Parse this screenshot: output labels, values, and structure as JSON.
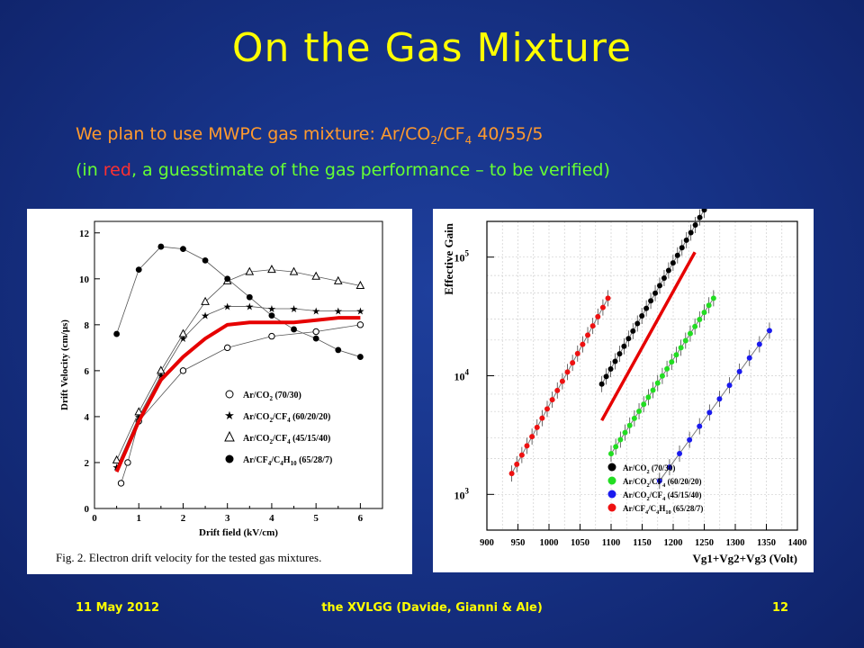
{
  "slide": {
    "title": "On the Gas Mixture",
    "line1_prefix": "We plan to use MWPC gas mixture: Ar/CO",
    "line1_sub1": "2",
    "line1_mid": "/CF",
    "line1_sub2": "4",
    "line1_suffix": " 40/55/5",
    "line2_open": "(in ",
    "line2_red": "red",
    "line2_rest": ", a guesstimate of the gas performance – to be verified)"
  },
  "footer": {
    "date": "11 May 2012",
    "center": "the XVLGG (Davide, Gianni & Ale)",
    "page": "12"
  },
  "chart_data": [
    {
      "type": "line",
      "xlabel": "Drift field (kV/cm)",
      "ylabel": "Drift Velocity (cm/μs)",
      "xlim": [
        0,
        6.5
      ],
      "ylim": [
        0,
        12.5
      ],
      "xticks": [
        0,
        1,
        2,
        3,
        4,
        5,
        6
      ],
      "yticks": [
        0,
        2,
        4,
        6,
        8,
        10,
        12
      ],
      "caption": "Fig. 2.  Electron drift velocity for the tested gas mixtures.",
      "legend_position": "bottom-right",
      "series": [
        {
          "name": "Ar/CO2 (70/30)",
          "legend_text": "Ar/CO",
          "legend_sub": "2",
          "legend_tail": " (70/30)",
          "marker": "open-circle",
          "x": [
            0.6,
            0.75,
            1.0,
            2.0,
            3.0,
            4.0,
            5.0,
            6.0
          ],
          "y": [
            1.1,
            2.0,
            3.8,
            6.0,
            7.0,
            7.5,
            7.7,
            8.0
          ]
        },
        {
          "name": "Ar/CO2/CF4 (60/20/20)",
          "legend_text": "Ar/CO",
          "legend_sub": "2",
          "legend_mid": "/CF",
          "legend_sub2": "4",
          "legend_tail": " (60/20/20)",
          "marker": "star",
          "x": [
            0.5,
            1.0,
            1.5,
            2.0,
            2.5,
            3.0,
            3.5,
            4.0,
            4.5,
            5.0,
            5.5,
            6.0
          ],
          "y": [
            1.8,
            4.0,
            5.8,
            7.4,
            8.4,
            8.8,
            8.8,
            8.7,
            8.7,
            8.6,
            8.6,
            8.6
          ]
        },
        {
          "name": "Ar/CO2/CF4 (45/15/40)",
          "legend_text": "Ar/CO",
          "legend_sub": "2",
          "legend_mid": "/CF",
          "legend_sub2": "4",
          "legend_tail": " (45/15/40)",
          "marker": "open-triangle",
          "x": [
            0.5,
            1.0,
            1.5,
            2.0,
            2.5,
            3.0,
            3.5,
            4.0,
            4.5,
            5.0,
            5.5,
            6.0
          ],
          "y": [
            2.1,
            4.2,
            6.0,
            7.6,
            9.0,
            9.9,
            10.3,
            10.4,
            10.3,
            10.1,
            9.9,
            9.7
          ]
        },
        {
          "name": "Ar/CF4/C4H10 (65/28/7)",
          "legend_text": "Ar/CF",
          "legend_sub": "4",
          "legend_mid": "/C",
          "legend_sub2": "4",
          "legend_mid2": "H",
          "legend_sub3": "10",
          "legend_tail": " (65/28/7)",
          "marker": "filled-circle",
          "x": [
            0.5,
            1.0,
            1.5,
            2.0,
            2.5,
            3.0,
            3.5,
            4.0,
            4.5,
            5.0,
            5.5,
            6.0
          ],
          "y": [
            7.6,
            10.4,
            11.4,
            11.3,
            10.8,
            10.0,
            9.2,
            8.4,
            7.8,
            7.4,
            6.9,
            6.6
          ]
        },
        {
          "name": "guesstimate",
          "marker": "none",
          "color": "#e60000",
          "x": [
            0.5,
            1.0,
            1.5,
            2.0,
            2.5,
            3.0,
            3.5,
            4.0,
            4.5,
            5.0,
            5.5,
            6.0
          ],
          "y": [
            1.6,
            3.8,
            5.6,
            6.6,
            7.4,
            8.0,
            8.1,
            8.1,
            8.1,
            8.2,
            8.3,
            8.3
          ]
        }
      ]
    },
    {
      "type": "scatter",
      "xlabel": "Vg1+Vg2+Vg3 (Volt)",
      "ylabel": "Effective Gain",
      "xlim": [
        900,
        1400
      ],
      "xticks": [
        900,
        950,
        1000,
        1050,
        1100,
        1150,
        1200,
        1250,
        1300,
        1350,
        1400
      ],
      "y_scale": "log",
      "ylim": [
        500,
        200000
      ],
      "yticks": [
        1000,
        10000,
        100000
      ],
      "ytick_base": "10",
      "ytick_exponents": [
        "3",
        "4",
        "5"
      ],
      "legend_position": "bottom-right",
      "series": [
        {
          "name": "Ar/CO2 (70/30)",
          "legend_text": "Ar/CO",
          "legend_sub": "2",
          "legend_tail": " (70/30)",
          "color": "#000000",
          "x_start": 1085,
          "x_end": 1250,
          "y_start": 8500,
          "y_end": 250000,
          "n": 24
        },
        {
          "name": "Ar/CO2/CF4 (60/20/20)",
          "legend_text": "Ar/CO",
          "legend_sub": "2",
          "legend_mid": "/CF",
          "legend_sub2": "4",
          "legend_tail": " (60/20/20)",
          "color": "#22dd22",
          "x_start": 1100,
          "x_end": 1265,
          "y_start": 2200,
          "y_end": 45000,
          "n": 23
        },
        {
          "name": "Ar/CO2/CF4 (45/15/40)",
          "legend_text": "Ar/CO",
          "legend_sub": "2",
          "legend_mid": "/CF",
          "legend_sub2": "4",
          "legend_tail": " (45/15/40)",
          "color": "#1a1aee",
          "x_start": 1178,
          "x_end": 1355,
          "y_start": 1300,
          "y_end": 24000,
          "n": 12
        },
        {
          "name": "Ar/CF4/C4H10 (65/28/7)",
          "legend_text": "Ar/CF",
          "legend_sub": "4",
          "legend_mid": "/C",
          "legend_sub2": "4",
          "legend_mid2": "H",
          "legend_sub3": "10",
          "legend_tail": " (65/28/7)",
          "color": "#ee1111",
          "x_start": 940,
          "x_end": 1095,
          "y_start": 1500,
          "y_end": 45000,
          "n": 20
        },
        {
          "name": "guesstimate",
          "color": "#e60000",
          "x_start": 1085,
          "x_end": 1235,
          "y_start": 4200,
          "y_end": 110000,
          "line_only": true
        }
      ]
    }
  ]
}
